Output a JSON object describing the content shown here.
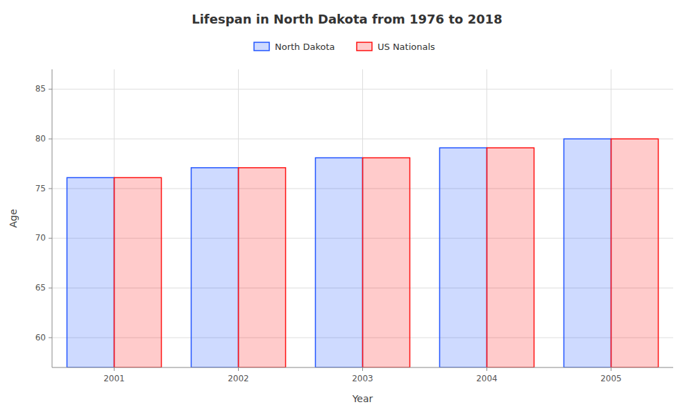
{
  "chart_data": {
    "type": "bar",
    "title": "Lifespan in North Dakota from 1976 to 2018",
    "x_label": "Year",
    "y_label": "Age",
    "categories": [
      "2001",
      "2002",
      "2003",
      "2004",
      "2005"
    ],
    "series": [
      {
        "name": "North Dakota",
        "color": "#2255ff",
        "values": [
          76.1,
          77.1,
          78.1,
          79.1,
          80.0
        ]
      },
      {
        "name": "US Nationals",
        "color": "#ff1111",
        "values": [
          76.1,
          77.1,
          78.1,
          79.1,
          80.0
        ]
      }
    ],
    "ylim": [
      57,
      87
    ],
    "yticks": [
      60,
      65,
      70,
      75,
      80,
      85
    ],
    "grid": true,
    "legend": "top"
  }
}
